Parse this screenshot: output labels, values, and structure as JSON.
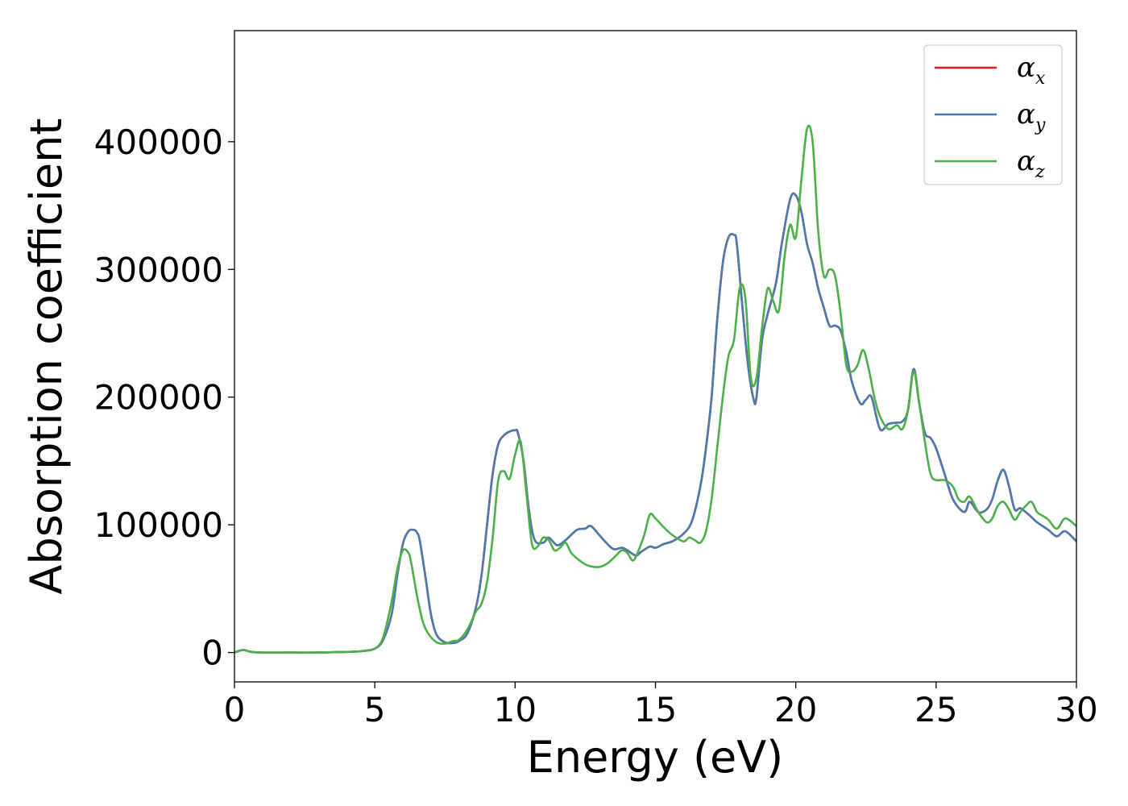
{
  "chart_data": {
    "type": "line",
    "title": "",
    "xlabel": "Energy (eV)",
    "ylabel": "Absorption coefficient",
    "xlim": [
      0,
      30
    ],
    "ylim": [
      -23000,
      487000
    ],
    "xticks": [
      0,
      5,
      10,
      15,
      20,
      25,
      30
    ],
    "yticks": [
      0,
      100000,
      200000,
      300000,
      400000
    ],
    "grid": false,
    "legend_position": "top-right",
    "series": [
      {
        "name": "α",
        "subscript": "x",
        "color": "#e41a1c",
        "x": [
          0,
          0.3,
          0.6,
          1,
          2,
          3,
          4,
          4.5,
          5,
          5.3,
          5.6,
          5.8,
          6,
          6.2,
          6.4,
          6.5,
          6.6,
          6.8,
          7,
          7.2,
          7.5,
          7.8,
          8,
          8.3,
          8.6,
          8.8,
          9,
          9.2,
          9.4,
          9.6,
          9.8,
          10,
          10.1,
          10.3,
          10.5,
          10.7,
          11,
          11.2,
          11.5,
          11.8,
          12.2,
          12.5,
          12.7,
          13,
          13.2,
          13.5,
          13.8,
          14,
          14.3,
          14.5,
          14.8,
          15,
          15.3,
          15.6,
          16,
          16.3,
          16.6,
          16.8,
          17,
          17.2,
          17.4,
          17.6,
          17.8,
          17.9,
          18.1,
          18.3,
          18.5,
          18.6,
          18.8,
          19,
          19.3,
          19.5,
          19.8,
          20,
          20.2,
          20.4,
          20.6,
          20.8,
          21,
          21.2,
          21.4,
          21.6,
          21.8,
          22,
          22.3,
          22.5,
          22.7,
          23,
          23.3,
          23.6,
          23.8,
          24,
          24.2,
          24.4,
          24.6,
          24.8,
          25,
          25.3,
          25.6,
          26,
          26.2,
          26.5,
          26.8,
          27,
          27.2,
          27.4,
          27.6,
          27.8,
          28,
          28.3,
          28.6,
          29,
          29.3,
          29.6,
          30
        ],
        "values": [
          0,
          2000,
          500,
          0,
          0,
          0,
          500,
          1000,
          3000,
          10000,
          30000,
          60000,
          85000,
          95000,
          96000,
          94000,
          88000,
          60000,
          30000,
          14000,
          8000,
          7500,
          9000,
          15000,
          35000,
          60000,
          100000,
          140000,
          163000,
          170000,
          173000,
          174000,
          172000,
          150000,
          110000,
          88000,
          86000,
          90000,
          84000,
          88000,
          96000,
          97000,
          99000,
          92000,
          87000,
          81000,
          82000,
          80000,
          76000,
          79000,
          83000,
          82000,
          85000,
          87000,
          93000,
          103000,
          130000,
          160000,
          200000,
          260000,
          305000,
          325000,
          327000,
          320000,
          270000,
          225000,
          198000,
          200000,
          245000,
          265000,
          290000,
          320000,
          355000,
          358000,
          345000,
          320000,
          305000,
          285000,
          270000,
          256000,
          256000,
          252000,
          235000,
          212000,
          195000,
          198000,
          200000,
          175000,
          179000,
          180000,
          181000,
          190000,
          222000,
          195000,
          172000,
          168000,
          160000,
          140000,
          120000,
          110000,
          118000,
          110000,
          112000,
          120000,
          135000,
          143000,
          130000,
          112000,
          113000,
          108000,
          102000,
          96000,
          91000,
          95000,
          87000
        ]
      },
      {
        "name": "α",
        "subscript": "y",
        "color": "#4a7ab0",
        "x": [
          0,
          0.3,
          0.6,
          1,
          2,
          3,
          4,
          4.5,
          5,
          5.3,
          5.6,
          5.8,
          6,
          6.2,
          6.4,
          6.5,
          6.6,
          6.8,
          7,
          7.2,
          7.5,
          7.8,
          8,
          8.3,
          8.6,
          8.8,
          9,
          9.2,
          9.4,
          9.6,
          9.8,
          10,
          10.1,
          10.3,
          10.5,
          10.7,
          11,
          11.2,
          11.5,
          11.8,
          12.2,
          12.5,
          12.7,
          13,
          13.2,
          13.5,
          13.8,
          14,
          14.3,
          14.5,
          14.8,
          15,
          15.3,
          15.6,
          16,
          16.3,
          16.6,
          16.8,
          17,
          17.2,
          17.4,
          17.6,
          17.8,
          17.9,
          18.1,
          18.3,
          18.5,
          18.6,
          18.8,
          19,
          19.3,
          19.5,
          19.8,
          20,
          20.2,
          20.4,
          20.6,
          20.8,
          21,
          21.2,
          21.4,
          21.6,
          21.8,
          22,
          22.3,
          22.5,
          22.7,
          23,
          23.3,
          23.6,
          23.8,
          24,
          24.2,
          24.4,
          24.6,
          24.8,
          25,
          25.3,
          25.6,
          26,
          26.2,
          26.5,
          26.8,
          27,
          27.2,
          27.4,
          27.6,
          27.8,
          28,
          28.3,
          28.6,
          29,
          29.3,
          29.6,
          30
        ],
        "values": [
          0,
          2000,
          500,
          0,
          0,
          0,
          500,
          1000,
          3000,
          10000,
          30000,
          60000,
          85000,
          95000,
          96000,
          94000,
          88000,
          60000,
          30000,
          14000,
          8000,
          7500,
          9000,
          15000,
          35000,
          60000,
          100000,
          140000,
          163000,
          170000,
          173000,
          174000,
          172000,
          150000,
          110000,
          88000,
          86000,
          90000,
          84000,
          88000,
          96000,
          97000,
          99000,
          92000,
          87000,
          81000,
          82000,
          80000,
          76000,
          79000,
          83000,
          82000,
          85000,
          87000,
          93000,
          103000,
          130000,
          160000,
          200000,
          260000,
          305000,
          325000,
          327000,
          320000,
          270000,
          225000,
          198000,
          200000,
          245000,
          265000,
          290000,
          320000,
          355000,
          358000,
          345000,
          320000,
          305000,
          285000,
          270000,
          256000,
          256000,
          252000,
          235000,
          212000,
          195000,
          198000,
          200000,
          175000,
          179000,
          180000,
          181000,
          190000,
          222000,
          195000,
          172000,
          168000,
          160000,
          140000,
          120000,
          110000,
          118000,
          110000,
          112000,
          120000,
          135000,
          143000,
          130000,
          112000,
          113000,
          108000,
          102000,
          96000,
          91000,
          95000,
          87000
        ]
      },
      {
        "name": "α",
        "subscript": "z",
        "color": "#4daf4a",
        "x": [
          0,
          0.3,
          0.6,
          1,
          2,
          3,
          4,
          4.5,
          5,
          5.3,
          5.6,
          5.8,
          6,
          6.2,
          6.3,
          6.5,
          6.7,
          6.9,
          7.2,
          7.5,
          7.8,
          8,
          8.3,
          8.6,
          8.8,
          9,
          9.2,
          9.4,
          9.6,
          9.8,
          10,
          10.2,
          10.4,
          10.6,
          10.8,
          11,
          11.2,
          11.4,
          11.6,
          11.8,
          12,
          12.3,
          12.6,
          13,
          13.3,
          13.6,
          13.8,
          14,
          14.2,
          14.4,
          14.6,
          14.8,
          15,
          15.3,
          15.6,
          16,
          16.2,
          16.4,
          16.6,
          16.8,
          17,
          17.2,
          17.4,
          17.6,
          17.8,
          18,
          18.2,
          18.4,
          18.6,
          18.8,
          19,
          19.2,
          19.4,
          19.6,
          19.8,
          20,
          20.2,
          20.4,
          20.6,
          20.8,
          21,
          21.2,
          21.4,
          21.6,
          21.8,
          22,
          22.2,
          22.4,
          22.6,
          22.8,
          23,
          23.3,
          23.6,
          23.8,
          24,
          24.2,
          24.4,
          24.6,
          24.8,
          25,
          25.3,
          25.6,
          25.8,
          26,
          26.2,
          26.5,
          26.8,
          27,
          27.2,
          27.4,
          27.6,
          27.8,
          28,
          28.2,
          28.4,
          28.6,
          28.8,
          29,
          29.3,
          29.6,
          30
        ],
        "values": [
          0,
          2000,
          500,
          0,
          0,
          0,
          500,
          1000,
          3000,
          12000,
          40000,
          65000,
          80000,
          78000,
          70000,
          45000,
          25000,
          15000,
          8000,
          7000,
          9000,
          10000,
          18000,
          32000,
          38000,
          55000,
          90000,
          135000,
          142000,
          136000,
          155000,
          165000,
          125000,
          85000,
          83000,
          90000,
          88000,
          80000,
          82000,
          86000,
          78000,
          72000,
          68000,
          67000,
          70000,
          76000,
          80000,
          78000,
          72000,
          80000,
          92000,
          108000,
          105000,
          98000,
          92000,
          87000,
          90000,
          88000,
          86000,
          95000,
          120000,
          160000,
          200000,
          232000,
          245000,
          285000,
          278000,
          215000,
          215000,
          255000,
          285000,
          275000,
          268000,
          310000,
          335000,
          325000,
          370000,
          410000,
          400000,
          330000,
          295000,
          300000,
          295000,
          265000,
          225000,
          220000,
          225000,
          237000,
          222000,
          200000,
          185000,
          175000,
          178000,
          175000,
          190000,
          220000,
          195000,
          165000,
          140000,
          135000,
          135000,
          130000,
          120000,
          118000,
          122000,
          110000,
          102000,
          105000,
          115000,
          118000,
          112000,
          104000,
          110000,
          115000,
          118000,
          110000,
          107000,
          104000,
          97000,
          105000,
          99000
        ]
      }
    ]
  }
}
